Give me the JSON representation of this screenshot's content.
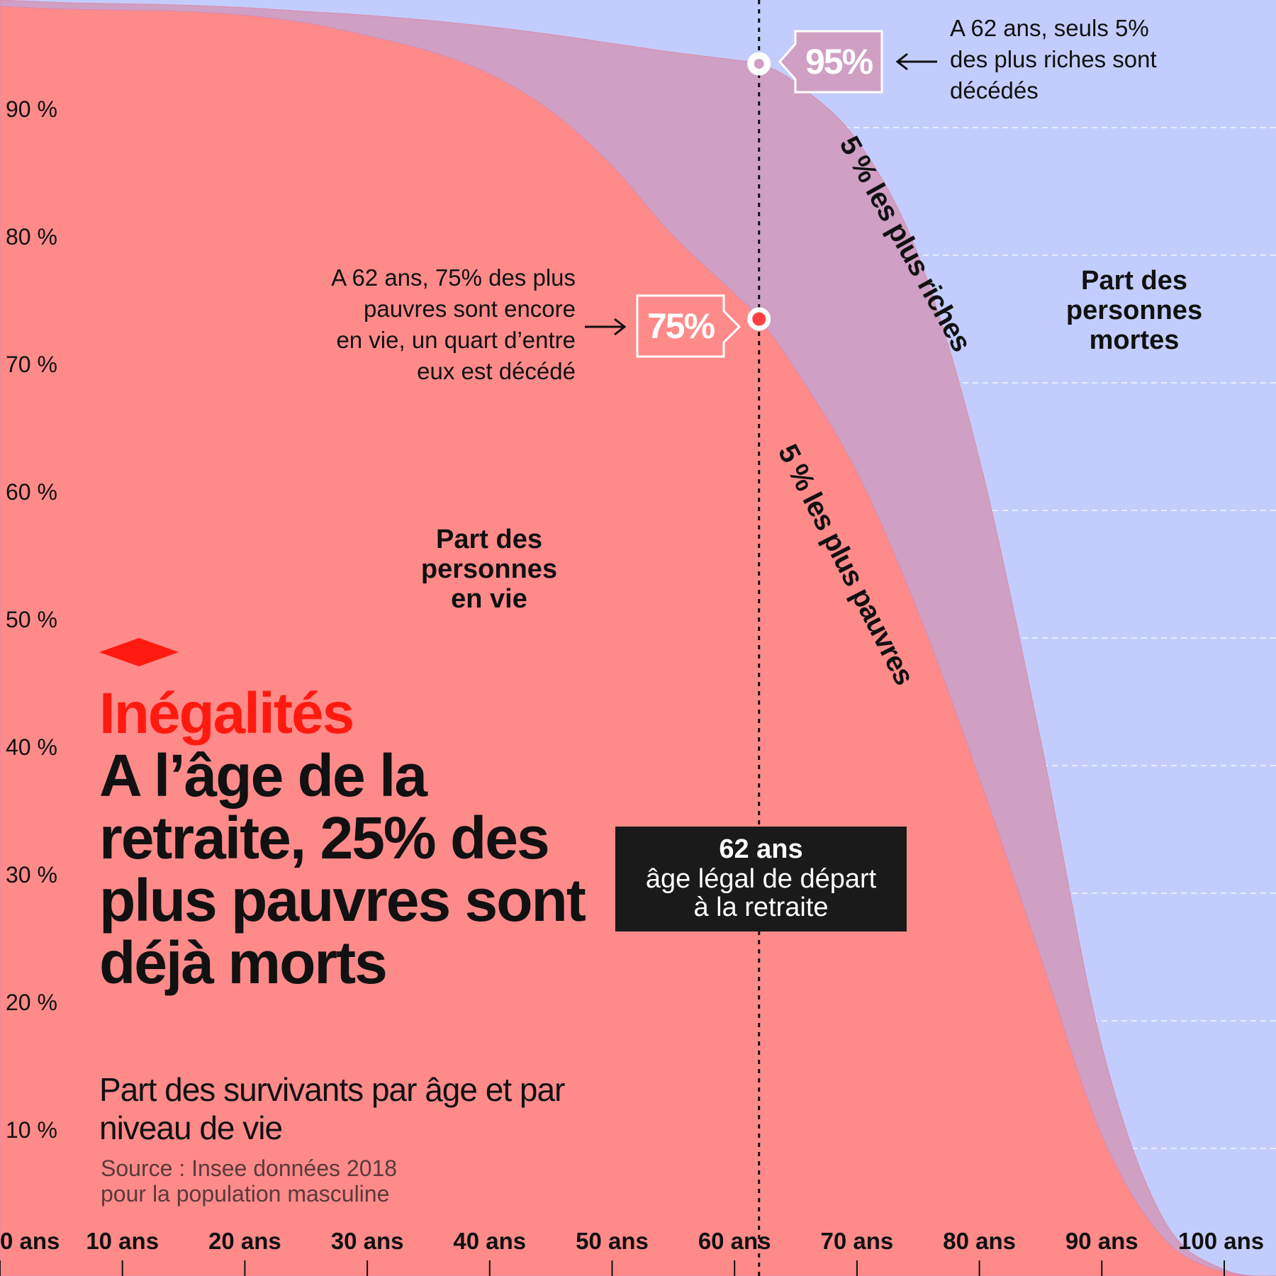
{
  "chart_data": {
    "type": "area",
    "subtitle": "Part des survivants par âge et par niveau de vie",
    "x": [
      0,
      5,
      10,
      15,
      20,
      25,
      30,
      35,
      40,
      45,
      50,
      55,
      60,
      62,
      65,
      70,
      75,
      80,
      85,
      90,
      95,
      100,
      105
    ],
    "series": [
      {
        "name": "5 % les plus riches",
        "color": "#d09fc4",
        "values": [
          100,
          99.8,
          99.7,
          99.6,
          99.4,
          99.1,
          98.8,
          98.4,
          97.9,
          97.3,
          96.6,
          95.9,
          95.3,
          95,
          93.5,
          89,
          80,
          64,
          42,
          18,
          4.5,
          0.5,
          0
        ]
      },
      {
        "name": "5 % les plus pauvres",
        "color": "#ff8a8a",
        "values": [
          99.5,
          99.3,
          99.2,
          99.1,
          98.8,
          98.2,
          97.2,
          96,
          94.2,
          91.3,
          87,
          81.5,
          77,
          75,
          71,
          63,
          52,
          39,
          25,
          11,
          3,
          0.3,
          0
        ]
      }
    ],
    "xlim": [
      0,
      105
    ],
    "ylim": [
      0,
      100
    ],
    "x_tick_labels": [
      "0 ans",
      "10 ans",
      "20 ans",
      "30 ans",
      "40 ans",
      "50 ans",
      "60 ans",
      "70 ans",
      "80 ans",
      "90 ans",
      "100 ans"
    ],
    "y_tick_labels": [
      "10 %",
      "20 %",
      "30 %",
      "40 %",
      "50 %",
      "60 %",
      "70 %",
      "80 %",
      "90 %"
    ],
    "reference_line": {
      "x": 62,
      "style": "dotted"
    },
    "markers": [
      {
        "x": 62,
        "y": 95,
        "label": "95%"
      },
      {
        "x": 62,
        "y": 75,
        "label": "75%"
      }
    ],
    "grid": true,
    "background_color": "#c3cdfd"
  },
  "labels": {
    "kicker": "Inégalités",
    "headline": "A l’âge de la retraite, 25% des plus pauvres sont déjà morts",
    "subtitle": "Part des survivants par âge et par niveau de vie",
    "source_line1": "Source : Insee données 2018",
    "source_line2": "pour la population masculine",
    "alive_line1": "Part des",
    "alive_line2": "personnes",
    "alive_line3": "en vie",
    "dead_line1": "Part des",
    "dead_line2": "personnes",
    "dead_line3": "mortes",
    "rich_band": "5 % les plus riches",
    "poor_band": "5 % les plus pauvres",
    "note_rich_line1": "A 62 ans, seuls 5%",
    "note_rich_line2": "des plus riches sont",
    "note_rich_line3": "décédés",
    "note_poor_line1": "A 62 ans, 75% des plus",
    "note_poor_line2": "pauvres sont encore",
    "note_poor_line3": "en vie, un quart d’entre",
    "note_poor_line4": "eux est décédé",
    "badge_rich": "95%",
    "badge_poor": "75%",
    "retraite_line1": "62 ans",
    "retraite_line2": "âge légal de départ",
    "retraite_line3": "à la retraite"
  }
}
